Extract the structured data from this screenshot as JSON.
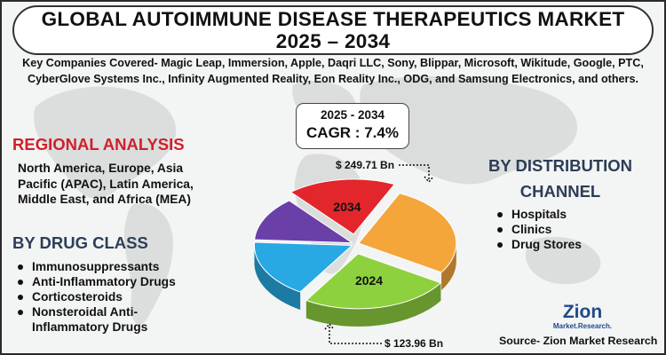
{
  "title": {
    "line1": "GLOBAL AUTOIMMUNE DISEASE THERAPEUTICS MARKET",
    "line2": "2025 – 2034"
  },
  "companies_text": "Key Companies Covered- Magic Leap, Immersion, Apple, Daqri LLC, Sony, Blippar, Microsoft, Wikitude, Google, PTC, CyberGlove Systems Inc., Infinity Augmented Reality, Eon Reality Inc., ODG, and Samsung Electronics, and others.",
  "cagr": {
    "years": "2025 - 2034",
    "value": "CAGR : 7.4%"
  },
  "regional": {
    "title": "REGIONAL ANALYSIS",
    "text": "North America, Europe, Asia Pacific (APAC), Latin America, Middle East, and Africa (MEA)"
  },
  "drug_class": {
    "title": "BY DRUG CLASS",
    "items": [
      "Immunosuppressants",
      "Anti-Inflammatory Drugs",
      "Corticosteroids",
      "Nonsteroidal Anti-Inflammatory Drugs"
    ]
  },
  "distribution": {
    "title_line1": "BY DISTRIBUTION",
    "title_line2": "CHANNEL",
    "items": [
      "Hospitals",
      "Clinics",
      "Drug Stores"
    ]
  },
  "source": "Source- Zion Market Research",
  "logo": {
    "word": "Zion",
    "sub": "Market.Research."
  },
  "colors": {
    "regional_title": "#d1202a",
    "section_title": "#2c3e57",
    "red_slice": "#e3262c",
    "orange_slice": "#f4a63a",
    "green_slice": "#8ed13f",
    "blue_slice": "#28a9e3",
    "purple_slice": "#6b3fa8"
  },
  "chart_data": {
    "type": "pie",
    "title": "",
    "annotations": [
      {
        "label": "$ 249.71 Bn",
        "year": "2034"
      },
      {
        "label": "$ 123.96 Bn",
        "year": "2024"
      }
    ],
    "slices": [
      {
        "label": "2034",
        "value": 18,
        "color": "#e3262c",
        "exploded": true
      },
      {
        "label": "",
        "value": 27,
        "color": "#f4a63a"
      },
      {
        "label": "2024",
        "value": 25,
        "color": "#8ed13f",
        "exploded": true
      },
      {
        "label": "",
        "value": 17,
        "color": "#28a9e3"
      },
      {
        "label": "",
        "value": 13,
        "color": "#6b3fa8"
      }
    ]
  }
}
